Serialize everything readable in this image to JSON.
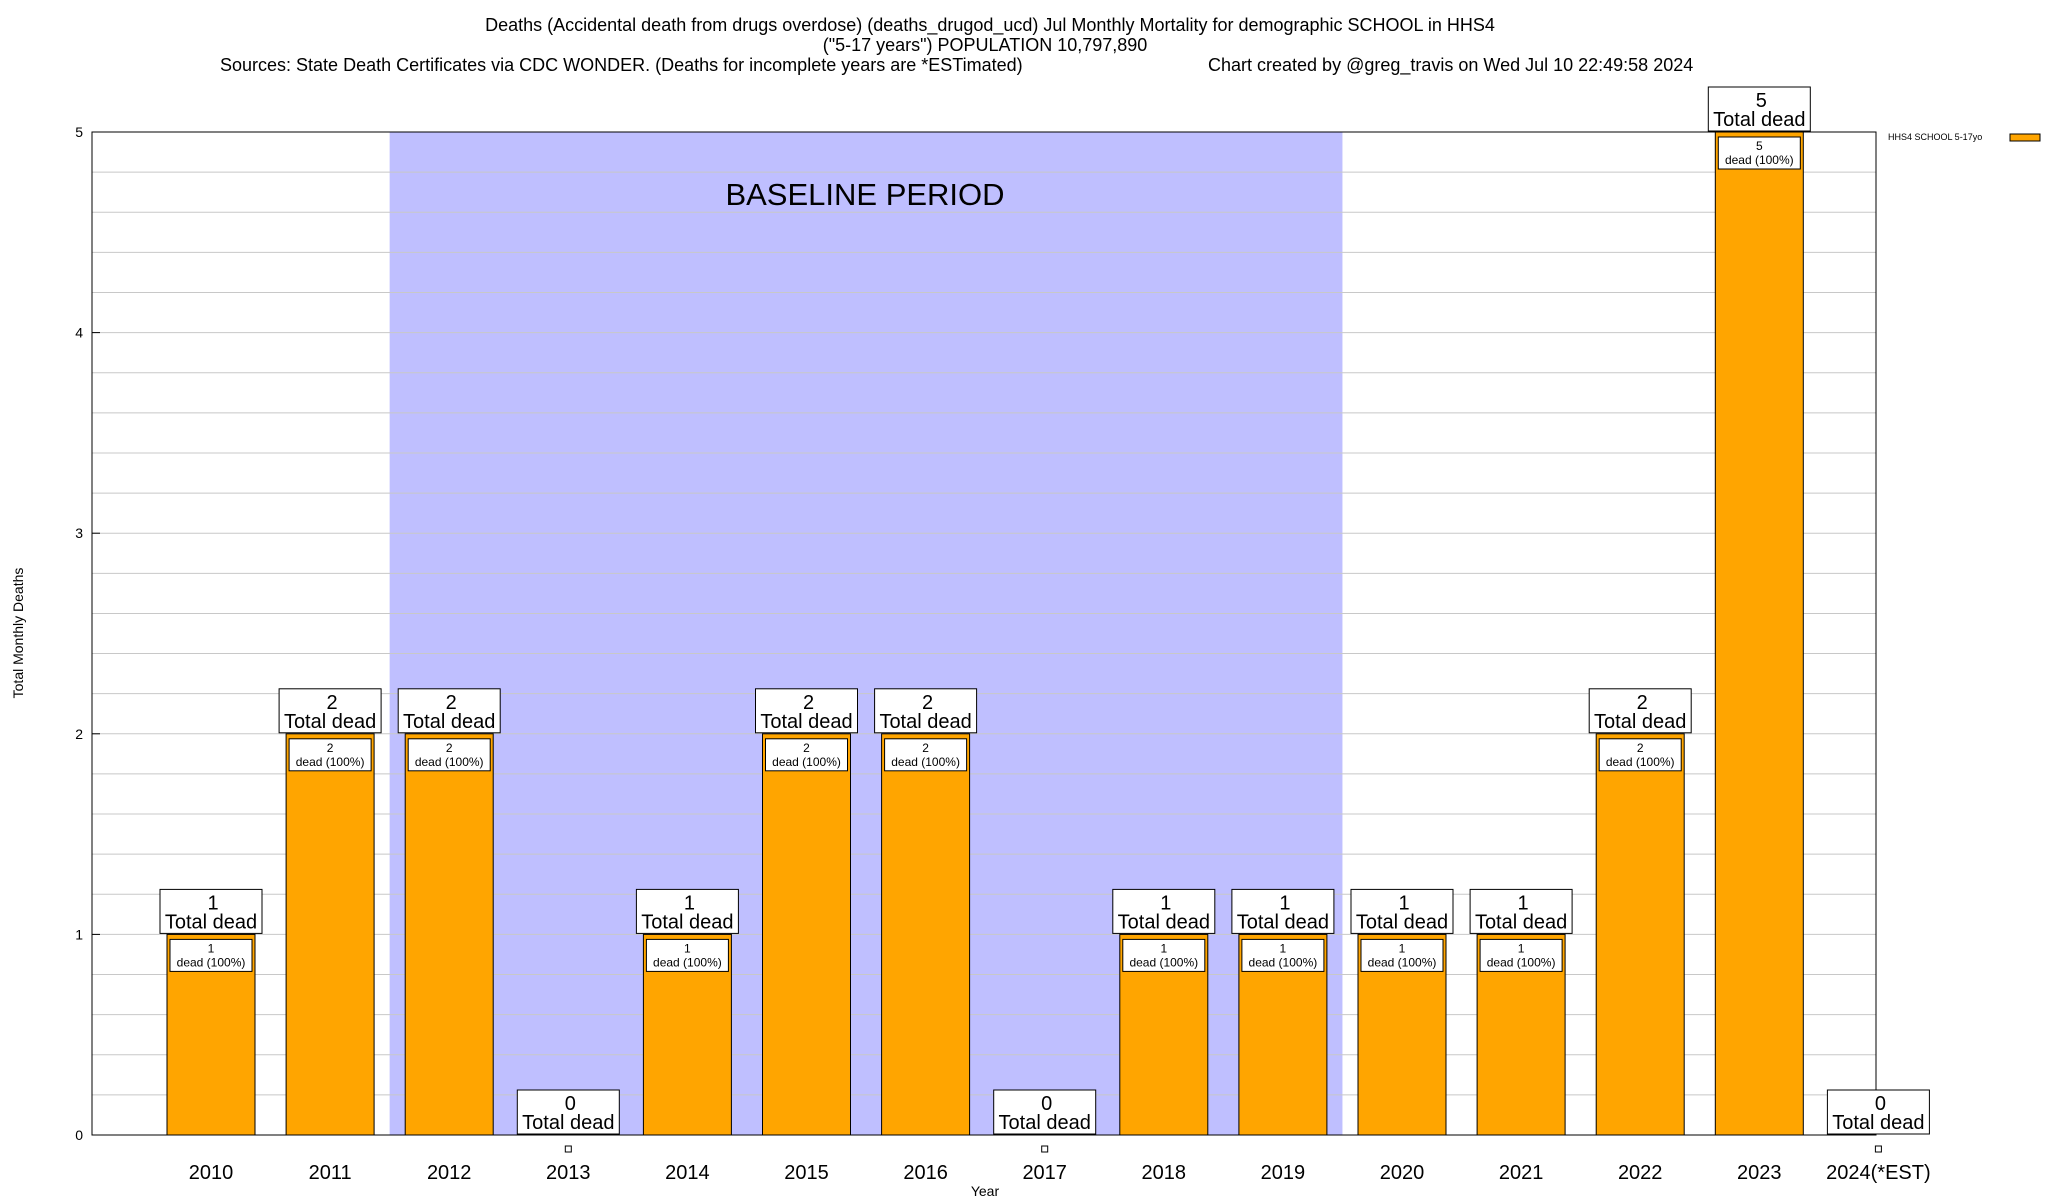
{
  "header": {
    "title_line1": "Deaths (Accidental death from drugs overdose) (deaths_drugod_ucd) Jul Monthly Mortality for demographic SCHOOL in HHS4",
    "title_line2": "(\"5-17 years\") POPULATION 10,797,890",
    "sources": "Sources: State Death Certificates via CDC WONDER. (Deaths for incomplete years are *ESTimated)",
    "credit": "Chart created by @greg_travis on Wed Jul 10 22:49:58 2024"
  },
  "chart_data": {
    "type": "bar",
    "xlabel": "Year",
    "ylabel": "Total Monthly Deaths",
    "ylim": [
      0,
      5
    ],
    "yticks": [
      "0",
      "1",
      "2",
      "3",
      "4",
      "5"
    ],
    "categories": [
      "2010",
      "2011",
      "2012",
      "2013",
      "2014",
      "2015",
      "2016",
      "2017",
      "2018",
      "2019",
      "2020",
      "2021",
      "2022",
      "2023",
      "2024(*EST)"
    ],
    "values": [
      1,
      2,
      2,
      0,
      1,
      2,
      2,
      0,
      1,
      1,
      1,
      1,
      2,
      5,
      0
    ],
    "total_labels": [
      "1",
      "2",
      "2",
      "0",
      "1",
      "2",
      "2",
      "0",
      "1",
      "1",
      "1",
      "1",
      "2",
      "5",
      "0"
    ],
    "total_suffix": "Total dead",
    "inner_suffix": "dead (100%)",
    "baseline": {
      "label": "BASELINE PERIOD",
      "start_year": "2012",
      "end_year": "2019"
    },
    "series": [
      {
        "name": "HHS4 SCHOOL 5-17yo",
        "color": "#FFA500",
        "values": [
          1,
          2,
          2,
          0,
          1,
          2,
          2,
          0,
          1,
          1,
          1,
          1,
          2,
          5,
          0
        ]
      }
    ],
    "colors": {
      "bar": "#FFA500",
      "baseline": "#BFBFFF",
      "grid": "#C8C8C8"
    }
  }
}
